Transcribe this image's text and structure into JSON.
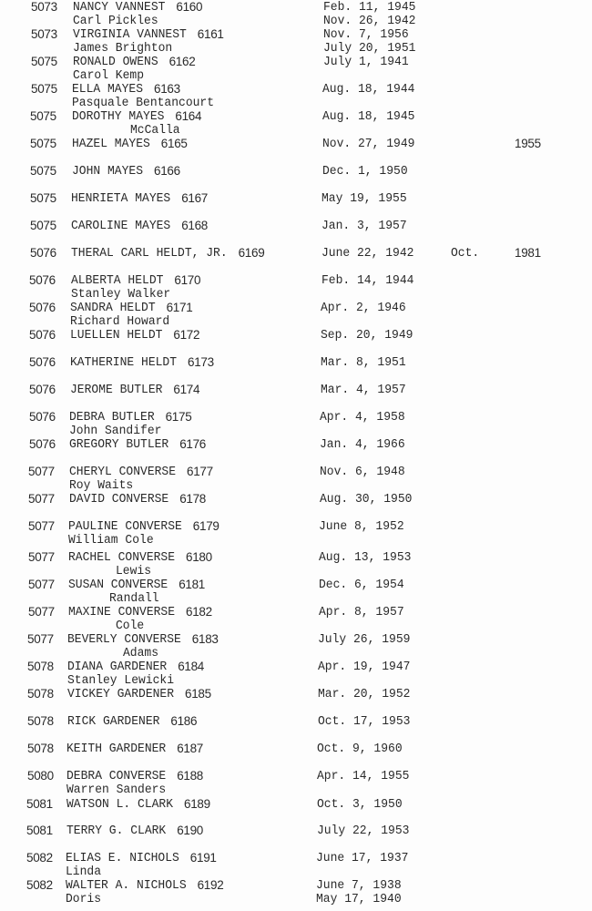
{
  "entries": [
    {
      "family": "5073",
      "name": "NANCY VANNEST",
      "id": "6160",
      "date": "Feb. 11, 1945",
      "spouse": "Carl Pickles",
      "spouse_date": "Nov. 26, 1942"
    },
    {
      "family": "5073",
      "name": "VIRGINIA VANNEST",
      "id": "6161",
      "date": "Nov. 7, 1956",
      "spouse": "James Brighton",
      "spouse_date": "July 20, 1951"
    },
    {
      "family": "5075",
      "name": "RONALD OWENS",
      "id": "6162",
      "date": "July 1, 1941",
      "spouse": "Carol Kemp"
    },
    {
      "family": "5075",
      "name": "ELLA MAYES",
      "id": "6163",
      "date": "Aug. 18, 1944",
      "spouse": "Pasquale Bentancourt"
    },
    {
      "family": "5075",
      "name": "DOROTHY MAYES",
      "id": "6164",
      "date": "Aug. 18, 1945",
      "spouse": "McCalla"
    },
    {
      "family": "5075",
      "name": "HAZEL MAYES",
      "id": "6165",
      "date": "Nov. 27, 1949",
      "death_year": "1955"
    },
    {
      "family": "5075",
      "name": "JOHN MAYES",
      "id": "6166",
      "date": "Dec. 1, 1950"
    },
    {
      "family": "5075",
      "name": "HENRIETA MAYES",
      "id": "6167",
      "date": "May 19, 1955"
    },
    {
      "family": "5075",
      "name": "CAROLINE MAYES",
      "id": "6168",
      "date": "Jan. 3, 1957"
    },
    {
      "family": "5076",
      "name": "THERAL CARL HELDT, JR.",
      "id": "6169",
      "date": "June 22, 1942",
      "death_month": "Oct.",
      "death_year": "1981"
    },
    {
      "family": "5076",
      "name": "ALBERTA HELDT",
      "id": "6170",
      "date": "Feb. 14, 1944",
      "spouse": "Stanley Walker"
    },
    {
      "family": "5076",
      "name": "SANDRA HELDT",
      "id": "6171",
      "date": "Apr. 2, 1946",
      "spouse": "Richard Howard"
    },
    {
      "family": "5076",
      "name": "LUELLEN HELDT",
      "id": "6172",
      "date": "Sep. 20, 1949"
    },
    {
      "family": "5076",
      "name": "KATHERINE HELDT",
      "id": "6173",
      "date": "Mar. 8, 1951"
    },
    {
      "family": "5076",
      "name": "JEROME BUTLER",
      "id": "6174",
      "date": "Mar. 4, 1957"
    },
    {
      "family": "5076",
      "name": "DEBRA BUTLER",
      "id": "6175",
      "date": "Apr. 4, 1958",
      "spouse": "John Sandifer"
    },
    {
      "family": "5076",
      "name": "GREGORY BUTLER",
      "id": "6176",
      "date": "Jan. 4, 1966"
    },
    {
      "family": "5077",
      "name": "CHERYL CONVERSE",
      "id": "6177",
      "date": "Nov. 6, 1948",
      "spouse": "Roy Waits"
    },
    {
      "family": "5077",
      "name": "DAVID CONVERSE",
      "id": "6178",
      "date": "Aug. 30, 1950"
    },
    {
      "family": "5077",
      "name": "PAULINE CONVERSE",
      "id": "6179",
      "date": "June 8, 1952",
      "spouse": "William Cole"
    },
    {
      "family": "5077",
      "name": "RACHEL CONVERSE",
      "id": "6180",
      "date": "Aug. 13, 1953",
      "spouse": "Lewis"
    },
    {
      "family": "5077",
      "name": "SUSAN CONVERSE",
      "id": "6181",
      "date": "Dec. 6, 1954",
      "spouse": "Randall"
    },
    {
      "family": "5077",
      "name": "MAXINE CONVERSE",
      "id": "6182",
      "date": "Apr. 8, 1957",
      "spouse": "Cole"
    },
    {
      "family": "5077",
      "name": "BEVERLY CONVERSE",
      "id": "6183",
      "date": "July 26, 1959",
      "spouse": "Adams"
    },
    {
      "family": "5078",
      "name": "DIANA GARDENER",
      "id": "6184",
      "date": "Apr. 19, 1947",
      "spouse": "Stanley Lewicki"
    },
    {
      "family": "5078",
      "name": "VICKEY GARDENER",
      "id": "6185",
      "date": "Mar. 20, 1952"
    },
    {
      "family": "5078",
      "name": "RICK GARDENER",
      "id": "6186",
      "date": "Oct. 17, 1953"
    },
    {
      "family": "5078",
      "name": "KEITH GARDENER",
      "id": "6187",
      "date": "Oct. 9, 1960"
    },
    {
      "family": "5080",
      "name": "DEBRA CONVERSE",
      "id": "6188",
      "date": "Apr. 14, 1955",
      "spouse": "Warren Sanders"
    },
    {
      "family": "5081",
      "name": "WATSON L. CLARK",
      "id": "6189",
      "date": "Oct. 3, 1950"
    },
    {
      "family": "5081",
      "name": "TERRY G. CLARK",
      "id": "6190",
      "date": "July 22, 1953"
    },
    {
      "family": "5082",
      "name": "ELIAS E. NICHOLS",
      "id": "6191",
      "date": "June 17, 1937",
      "spouse": "Linda"
    },
    {
      "family": "5082",
      "name": "WALTER A. NICHOLS",
      "id": "6192",
      "date": "June 7, 1938",
      "spouse": "Doris",
      "spouse_date": "May 17, 1940"
    }
  ]
}
